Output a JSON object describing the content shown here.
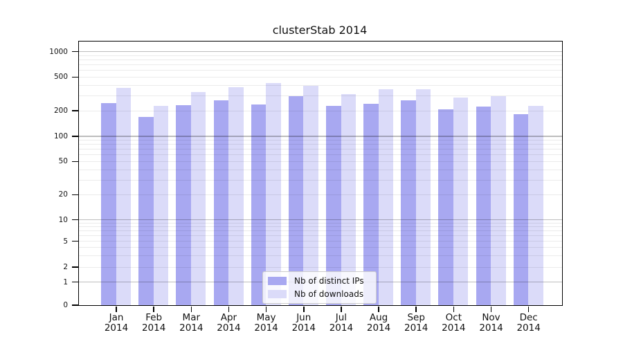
{
  "title": "clusterStab 2014",
  "chart_data": {
    "type": "bar",
    "title": "clusterStab 2014",
    "categories": [
      "Jan 2014",
      "Feb 2014",
      "Mar 2014",
      "Apr 2014",
      "May 2014",
      "Jun 2014",
      "Jul 2014",
      "Aug 2014",
      "Sep 2014",
      "Oct 2014",
      "Nov 2014",
      "Dec 2014"
    ],
    "series": [
      {
        "name": "Nb of distinct IPs",
        "color": "#a8a8f1",
        "values": [
          248,
          170,
          233,
          264,
          237,
          295,
          229,
          240,
          268,
          208,
          226,
          184
        ]
      },
      {
        "name": "Nb of downloads",
        "color": "#dbdbf9",
        "values": [
          375,
          230,
          334,
          380,
          426,
          395,
          316,
          359,
          359,
          286,
          295,
          229
        ]
      }
    ],
    "yscale": "symlog",
    "ylim": [
      0,
      1000
    ],
    "y_ticks": [
      0,
      1,
      2,
      5,
      10,
      20,
      50,
      100,
      200,
      500,
      1000
    ],
    "grid": true,
    "legend_position": "lower center"
  }
}
